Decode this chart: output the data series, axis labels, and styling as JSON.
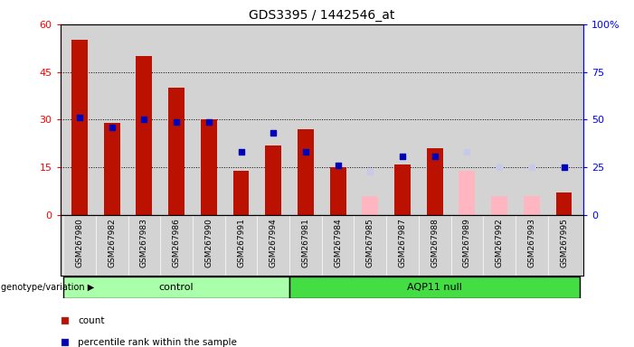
{
  "title": "GDS3395 / 1442546_at",
  "samples": [
    "GSM267980",
    "GSM267982",
    "GSM267983",
    "GSM267986",
    "GSM267990",
    "GSM267991",
    "GSM267994",
    "GSM267981",
    "GSM267984",
    "GSM267985",
    "GSM267987",
    "GSM267988",
    "GSM267989",
    "GSM267992",
    "GSM267993",
    "GSM267995"
  ],
  "groups": [
    "control",
    "control",
    "control",
    "control",
    "control",
    "control",
    "control",
    "AQP11 null",
    "AQP11 null",
    "AQP11 null",
    "AQP11 null",
    "AQP11 null",
    "AQP11 null",
    "AQP11 null",
    "AQP11 null",
    "AQP11 null"
  ],
  "count": [
    55,
    29,
    50,
    40,
    30,
    14,
    22,
    27,
    15,
    null,
    16,
    21,
    null,
    null,
    null,
    7
  ],
  "rank_pct": [
    51,
    46,
    50,
    49,
    49,
    33,
    43,
    33,
    26,
    null,
    31,
    31,
    null,
    null,
    null,
    25
  ],
  "count_absent": [
    null,
    null,
    null,
    null,
    null,
    null,
    null,
    null,
    null,
    6,
    null,
    null,
    14,
    6,
    6,
    null
  ],
  "rank_absent_pct": [
    null,
    null,
    null,
    null,
    null,
    null,
    null,
    null,
    null,
    23,
    null,
    null,
    33,
    25,
    25,
    null
  ],
  "count_color": "#BB1100",
  "rank_color": "#0000BB",
  "count_absent_color": "#FFB6C1",
  "rank_absent_color": "#C8C8E8",
  "ylim_left": [
    0,
    60
  ],
  "ylim_right": [
    0,
    100
  ],
  "yticks_left": [
    0,
    15,
    30,
    45,
    60
  ],
  "yticks_right": [
    0,
    25,
    50,
    75,
    100
  ],
  "background_color": "#FFFFFF",
  "plot_bg": "#D3D3D3",
  "control_count": 7,
  "aqp11_count": 9,
  "control_color": "#AAFFAA",
  "aqp11_color": "#44DD44"
}
